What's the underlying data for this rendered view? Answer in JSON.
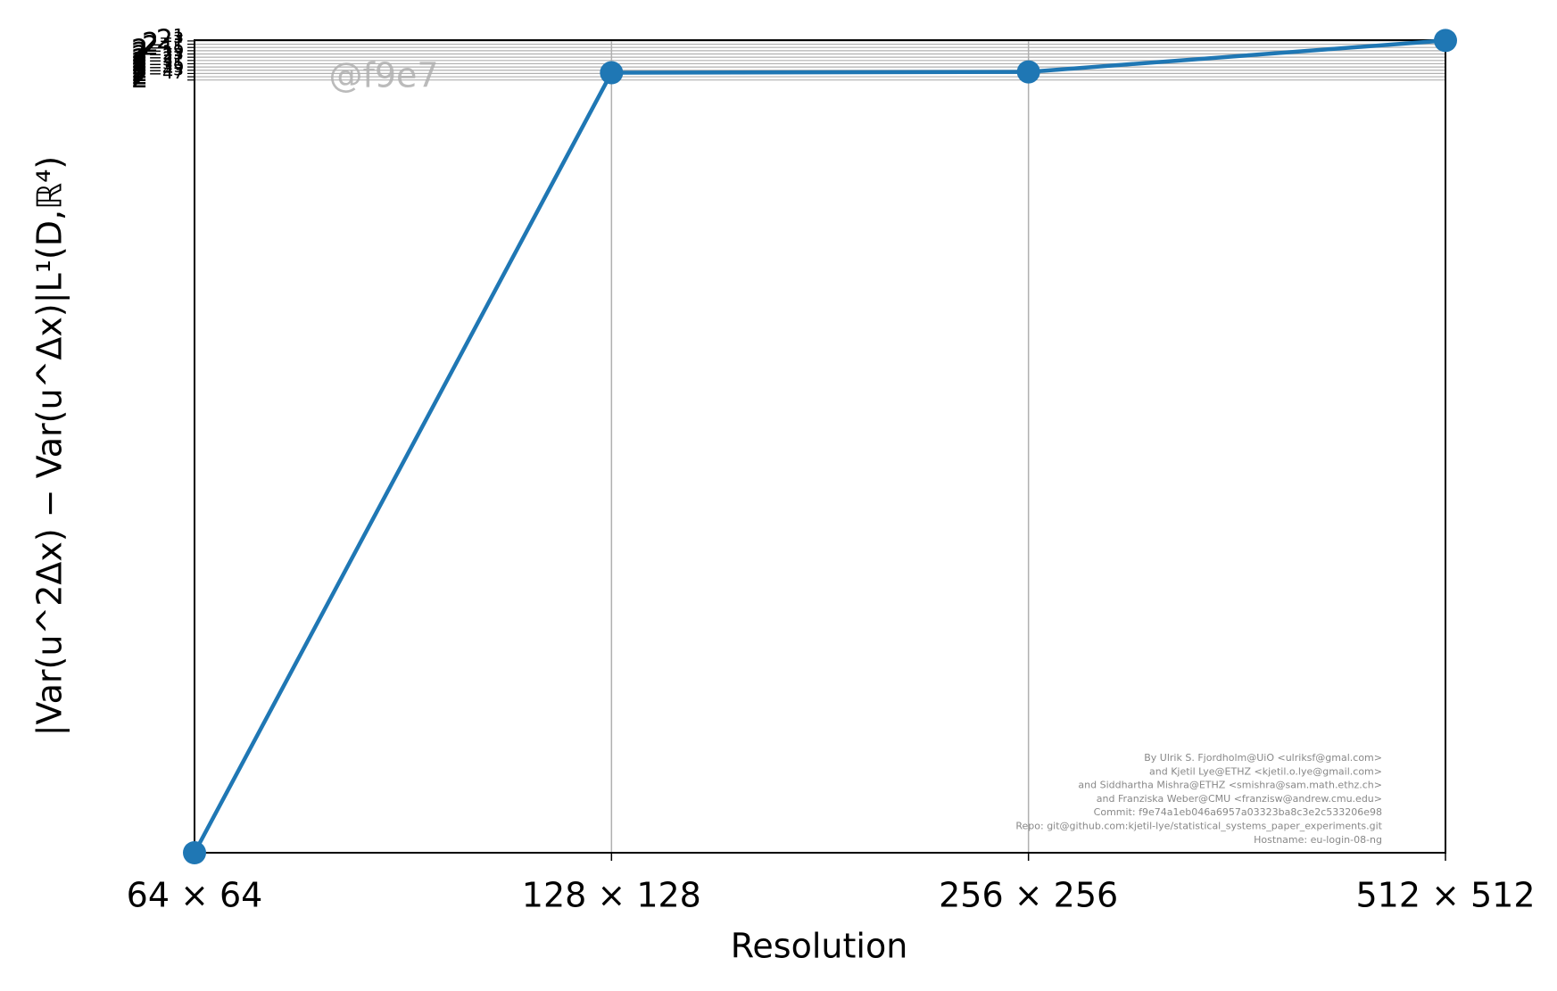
{
  "chart_data": {
    "type": "line",
    "x_label": "Resolution",
    "y_label": "|Var(u^2Δx) − Var(u^Δx)|L¹(D,ℝ⁴)",
    "watermark": "@f9e7",
    "credits": [
      "By Ulrik S. Fjordholm@UiO <ulriksf@gmal.com>",
      "and Kjetil Lye@ETHZ <kjetil.o.lye@gmail.com>",
      "and Siddhartha Mishra@ETHZ <smishra@sam.math.ethz.ch>",
      "and Franziska Weber@CMU <franzisw@andrew.cmu.edu>",
      "Commit: f9e74a1eb046a6957a03323ba8c3e2c533206e98",
      "Repo: git@github.com:kjetil-lye/statistical_systems_paper_experiments.git",
      "Hostname: eu-login-08-ng"
    ],
    "categories": [
      "64 × 64",
      "128 × 128",
      "256 × 256",
      "512 × 512"
    ],
    "values": [
      1e-300,
      3.6e-12,
      7.3e-12,
      3
    ],
    "color": "#1f77b4",
    "log_y": true,
    "log_base": 2,
    "grid": true,
    "ylim": [
      1e-300,
      4
    ],
    "yticks": [
      {
        "value": 2,
        "label": "2¹"
      },
      {
        "value": 0.125,
        "label": "2⁻³"
      },
      {
        "value": 0.0078125,
        "label": "2⁻⁷"
      },
      {
        "value": 0.00048828125,
        "label": "2⁻¹¹"
      },
      {
        "value": 3.0517578125e-05,
        "label": "2⁻¹⁵"
      },
      {
        "value": 1.9073486328125e-06,
        "label": "2⁻¹⁹"
      },
      {
        "value": 1.1920928955078125e-07,
        "label": "2⁻²³"
      },
      {
        "value": 7.450580596923828e-09,
        "label": "2⁻²⁷"
      },
      {
        "value": 4.656612873077393e-10,
        "label": "2⁻³¹"
      },
      {
        "value": 2.9103830456733704e-11,
        "label": "2⁻³⁵"
      },
      {
        "value": 1.8189894035458565e-12,
        "label": "2⁻³⁹"
      },
      {
        "value": 1.1368683772161603e-13,
        "label": "2⁻⁴³"
      },
      {
        "value": 7.105427357601002e-15,
        "label": "2⁻⁴⁷"
      }
    ]
  }
}
